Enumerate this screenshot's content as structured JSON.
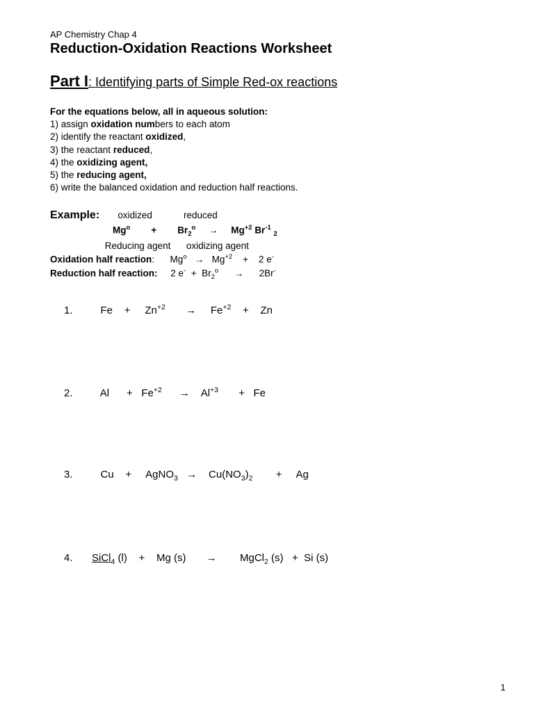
{
  "header": {
    "course": "AP Chemistry    Chap 4",
    "title": "Reduction-Oxidation Reactions Worksheet"
  },
  "part": {
    "label": "Part I",
    "colon": ":  ",
    "subtitle": "Identifying parts of Simple Red-ox reactions"
  },
  "instructions": {
    "lead": "For the equations below, all in aqueous solution:",
    "items": [
      {
        "pre": "1)  assign ",
        "bold": "oxidation num",
        "post": "bers to each atom"
      },
      {
        "pre": "2) identify the reactant ",
        "bold": "oxidized",
        "post": ","
      },
      {
        "pre": "3) the reactant ",
        "bold": "reduced",
        "post": ","
      },
      {
        "pre": "4) the ",
        "bold": "oxidizing agent,",
        "post": ""
      },
      {
        "pre": "5) the ",
        "bold": "reducing agent,",
        "post": ""
      },
      {
        "pre": "6) write the balanced oxidation and reduction half reactions.",
        "bold": "",
        "post": ""
      }
    ]
  },
  "example": {
    "label": "Example:",
    "annot_ox": "oxidized",
    "annot_red": "reduced",
    "eq_left1": "Mg",
    "eq_left1_sup": "o",
    "plus": "+",
    "eq_left2": "Br",
    "eq_left2_sub": "2",
    "eq_left2_sup": "o",
    "arrow": "→",
    "eq_right1": "Mg",
    "eq_right1_sup": "+2",
    "eq_right2": "Br",
    "eq_right2_sup": "-1",
    "eq_right2_sub2": "2",
    "agent_red": "Reducing agent",
    "agent_ox": "oxidizing agent",
    "half_ox_label": "Oxidation half reaction",
    "half_ox_eq_l": "Mg",
    "half_ox_eq_l_sup": "o",
    "half_ox_eq_r": "Mg",
    "half_ox_eq_r_sup": "+2",
    "half_ox_eq_e": "2 e",
    "half_ox_eq_e_sup": "-",
    "half_red_label": "Reduction half reaction:",
    "half_red_eq_e": "2 e",
    "half_red_eq_e_sup": "-",
    "half_red_eq_br": "Br",
    "half_red_eq_br_sub": "2",
    "half_red_eq_br_sup": "o",
    "half_red_eq_r": "2Br",
    "half_red_eq_r_sup": "-"
  },
  "problems": [
    {
      "n": "1.",
      "a": "Fe",
      "a_sup": "",
      "a_sub": "",
      "plus1": "+",
      "b": "Zn",
      "b_sup": "+2",
      "b_sub": "",
      "arrow": "→",
      "c": "Fe",
      "c_sup": "+2",
      "c_sub": "",
      "plus2": "+",
      "d": "Zn",
      "d_sup": "",
      "d_sub": ""
    },
    {
      "n": "2.",
      "a": "Al",
      "a_sup": "",
      "a_sub": "",
      "plus1": "+",
      "b": "Fe",
      "b_sup": "+2",
      "b_sub": "",
      "arrow": "→",
      "c": "Al",
      "c_sup": "+3",
      "c_sub": "",
      "plus2": "+",
      "d": "Fe",
      "d_sup": "",
      "d_sub": ""
    },
    {
      "n": "3.",
      "a": "Cu",
      "a_sup": "",
      "a_sub": "",
      "plus1": "+",
      "b": "AgNO",
      "b_sup": "",
      "b_sub": "3",
      "arrow": "→",
      "c": "Cu(NO",
      "c_sup": "",
      "c_sub": "3",
      "c_post": ")",
      "c_sub2": "2",
      "plus2": "+",
      "d": "Ag",
      "d_sup": "",
      "d_sub": ""
    },
    {
      "n": "4.",
      "a": "SiCl",
      "a_sup": "",
      "a_sub": "4",
      "a_state": " (l)",
      "plus1": "+",
      "b": "Mg (s)",
      "b_sup": "",
      "b_sub": "",
      "arrow": "→",
      "c": "MgCl",
      "c_sup": "",
      "c_sub": "2",
      "c_state": " (s)",
      "plus2": "+",
      "d": "Si (s)",
      "d_sup": "",
      "d_sub": ""
    }
  ],
  "pagenum": "1"
}
